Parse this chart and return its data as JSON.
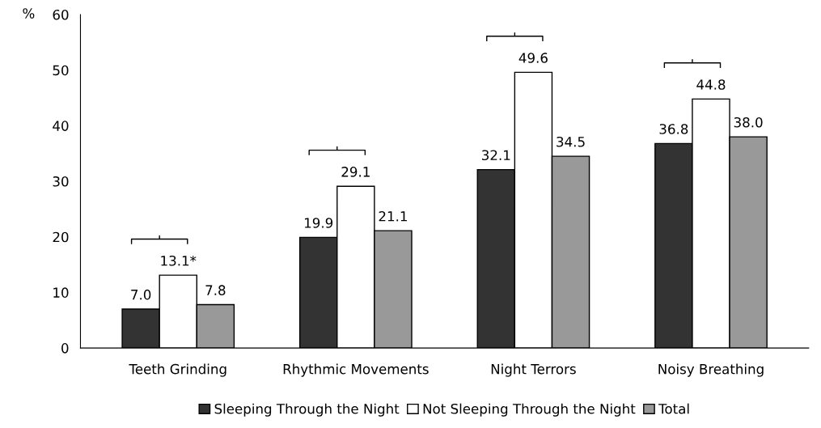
{
  "chart_data": {
    "type": "bar",
    "ylabel": "%",
    "categories": [
      "Teeth Grinding",
      "Rhythmic Movements",
      "Night Terrors",
      "Noisy Breathing"
    ],
    "series": [
      {
        "name": "Sleeping Through the Night",
        "color": "#333333",
        "values": [
          7.0,
          19.9,
          32.1,
          36.8
        ],
        "value_labels": [
          "7.0",
          "19.9",
          "32.1",
          "36.8"
        ]
      },
      {
        "name": "Not Sleeping Through the Night",
        "color": "#ffffff",
        "values": [
          13.1,
          29.1,
          49.6,
          44.8
        ],
        "value_labels": [
          "13.1*",
          "29.1",
          "49.6",
          "44.8"
        ]
      },
      {
        "name": "Total",
        "color": "#999999",
        "values": [
          7.8,
          21.1,
          34.5,
          38.0
        ],
        "value_labels": [
          "7.8",
          "21.1",
          "34.5",
          "38.0"
        ]
      }
    ],
    "ylim": [
      0,
      60
    ],
    "yticks": [
      0,
      10,
      20,
      30,
      40,
      50,
      60
    ],
    "grid": false,
    "legend": "bottom"
  }
}
